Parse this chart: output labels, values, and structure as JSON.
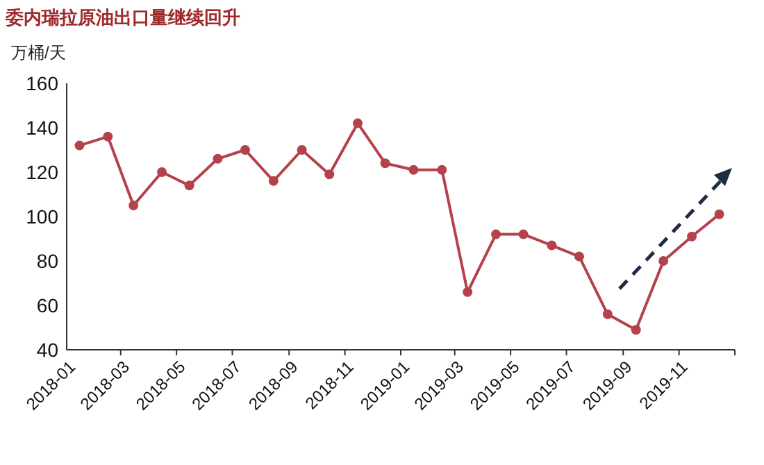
{
  "chart_data": {
    "type": "line",
    "title": "委内瑞拉原油出口量继续回升",
    "ylabel": "万桶/天",
    "x": [
      "2018-01-15",
      "2018-02-15",
      "2018-03-15",
      "2018-04-15",
      "2018-05-15",
      "2018-06-15",
      "2018-07-15",
      "2018-08-15",
      "2018-09-15",
      "2018-10-15",
      "2018-11-15",
      "2018-12-15",
      "2019-01-15",
      "2019-02-15",
      "2019-03-15",
      "2019-04-15",
      "2019-05-15",
      "2019-06-15",
      "2019-07-15",
      "2019-08-15",
      "2019-09-15",
      "2019-10-15",
      "2019-11-15",
      "2019-12-15"
    ],
    "series": [
      {
        "color": "#b5424a",
        "values": [
          132,
          136,
          105,
          120,
          114,
          126,
          130,
          116,
          130,
          119,
          142,
          124,
          121,
          121,
          66,
          92,
          92,
          87,
          82,
          56,
          49,
          80,
          91,
          101
        ]
      }
    ],
    "xlim": [
      "2018-01",
      "2020-01"
    ],
    "xticks": [
      {
        "value": "2018-01",
        "label": "2018-01"
      },
      {
        "value": "2018-03",
        "label": "2018-03"
      },
      {
        "value": "2018-05",
        "label": "2018-05"
      },
      {
        "value": "2018-07",
        "label": "2018-07"
      },
      {
        "value": "2018-09",
        "label": "2018-09"
      },
      {
        "value": "2018-11",
        "label": "2018-11"
      },
      {
        "value": "2019-01",
        "label": "2019-01"
      },
      {
        "value": "2019-03",
        "label": "2019-03"
      },
      {
        "value": "2019-05",
        "label": "2019-05"
      },
      {
        "value": "2019-07",
        "label": "2019-07"
      },
      {
        "value": "2019-09",
        "label": "2019-09"
      },
      {
        "value": "2019-11",
        "label": "2019-11"
      },
      {
        "value": "2020-01",
        "label": null
      }
    ],
    "ylim": [
      40,
      160
    ],
    "yticks": [
      40,
      60,
      80,
      100,
      120,
      140,
      160
    ],
    "grid": false,
    "marker": "circle",
    "line_style": "solid"
  }
}
